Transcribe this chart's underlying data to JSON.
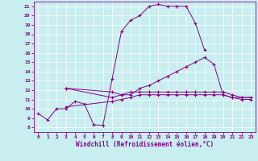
{
  "xlabel": "Windchill (Refroidissement éolien,°C)",
  "bg_color": "#c8eef0",
  "line_color": "#880088",
  "grid_color": "#ffffff",
  "xlim": [
    -0.5,
    23.5
  ],
  "ylim": [
    7.5,
    21.5
  ],
  "xticks": [
    0,
    1,
    2,
    3,
    4,
    5,
    6,
    7,
    8,
    9,
    10,
    11,
    12,
    13,
    14,
    15,
    16,
    17,
    18,
    19,
    20,
    21,
    22,
    23
  ],
  "yticks": [
    8,
    9,
    10,
    11,
    12,
    13,
    14,
    15,
    16,
    17,
    18,
    19,
    20,
    21
  ],
  "series": [
    {
      "x": [
        0,
        1,
        2,
        3,
        4,
        5,
        6,
        7,
        8,
        9,
        10,
        11,
        12,
        13,
        14,
        15,
        16,
        17,
        18
      ],
      "y": [
        9.5,
        8.8,
        10.0,
        10.0,
        10.8,
        10.5,
        8.3,
        8.2,
        13.2,
        18.3,
        19.5,
        20.0,
        21.0,
        21.2,
        21.0,
        21.0,
        21.0,
        19.2,
        16.3
      ]
    },
    {
      "x": [
        3,
        8,
        9,
        10,
        11,
        12,
        13,
        14,
        15,
        16,
        17,
        18,
        19,
        20,
        21,
        22,
        23
      ],
      "y": [
        12.2,
        11.8,
        11.5,
        11.5,
        12.2,
        12.5,
        13.0,
        13.5,
        14.0,
        14.5,
        15.0,
        15.5,
        14.8,
        11.5,
        11.2,
        11.2,
        11.2
      ]
    },
    {
      "x": [
        3,
        8,
        9,
        10,
        11,
        12,
        13,
        14,
        15,
        16,
        17,
        18,
        19,
        20,
        21,
        22,
        23
      ],
      "y": [
        12.2,
        11.2,
        11.5,
        11.8,
        11.8,
        11.8,
        11.8,
        11.8,
        11.8,
        11.8,
        11.8,
        11.8,
        11.8,
        11.8,
        11.5,
        11.2,
        11.2
      ]
    },
    {
      "x": [
        3,
        8,
        9,
        10,
        11,
        12,
        13,
        14,
        15,
        16,
        17,
        18,
        19,
        20,
        21,
        22,
        23
      ],
      "y": [
        10.2,
        10.8,
        11.0,
        11.2,
        11.5,
        11.5,
        11.5,
        11.5,
        11.5,
        11.5,
        11.5,
        11.5,
        11.5,
        11.5,
        11.2,
        11.0,
        11.0
      ]
    }
  ]
}
